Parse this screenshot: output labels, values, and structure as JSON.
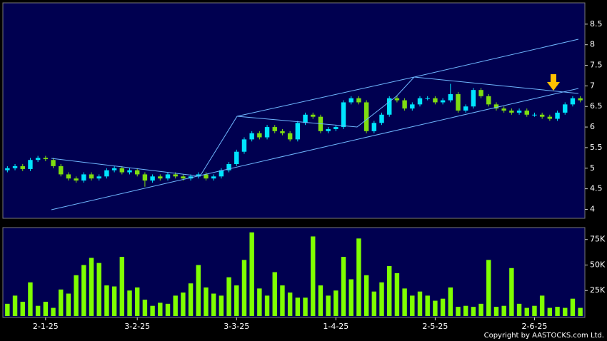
{
  "chart_data": [
    {
      "type": "candlestick",
      "up_color": "#00e5ff",
      "down_color": "#7fdd10",
      "xlim": [
        -0.5,
        75.5
      ],
      "ylim": [
        3.8,
        9.0
      ],
      "yticks": [
        4,
        4.5,
        5,
        5.5,
        6,
        6.5,
        7,
        7.5,
        8,
        8.5
      ],
      "open": [
        4.95,
        5.0,
        5.05,
        4.98,
        5.2,
        5.25,
        5.2,
        5.05,
        4.85,
        4.75,
        4.7,
        4.85,
        4.75,
        4.8,
        4.95,
        5.0,
        4.9,
        4.95,
        4.85,
        4.7,
        4.8,
        4.75,
        4.85,
        4.8,
        4.75,
        4.8,
        4.85,
        4.75,
        4.8,
        4.95,
        5.1,
        5.4,
        5.7,
        5.85,
        5.75,
        6.0,
        5.9,
        5.85,
        5.7,
        6.1,
        6.3,
        6.25,
        5.9,
        5.95,
        6.0,
        6.6,
        6.7,
        6.6,
        5.9,
        6.1,
        6.3,
        6.7,
        6.65,
        6.45,
        6.55,
        6.7,
        6.7,
        6.6,
        6.65,
        6.8,
        6.4,
        6.5,
        6.9,
        6.75,
        6.55,
        6.45,
        6.4,
        6.35,
        6.4,
        6.3,
        6.3,
        6.25,
        6.2,
        6.35,
        6.55,
        6.7
      ],
      "high": [
        5.05,
        5.1,
        5.1,
        5.25,
        5.3,
        5.3,
        5.25,
        5.1,
        4.9,
        4.8,
        4.9,
        4.9,
        4.85,
        5.0,
        5.05,
        5.05,
        5.0,
        5.0,
        4.9,
        4.85,
        4.85,
        4.9,
        4.9,
        4.85,
        4.85,
        4.9,
        4.9,
        4.85,
        5.0,
        5.15,
        5.45,
        5.75,
        5.9,
        5.9,
        6.05,
        6.05,
        5.95,
        5.9,
        6.15,
        6.35,
        6.35,
        6.3,
        6.0,
        6.05,
        6.65,
        6.75,
        6.75,
        6.65,
        6.15,
        6.35,
        6.75,
        6.75,
        6.7,
        6.6,
        6.75,
        6.75,
        6.75,
        6.7,
        7.05,
        6.85,
        6.55,
        6.95,
        6.95,
        6.8,
        6.6,
        6.5,
        6.45,
        6.45,
        6.45,
        6.35,
        6.35,
        6.3,
        6.4,
        6.6,
        6.75,
        6.75
      ],
      "low": [
        4.9,
        4.95,
        4.93,
        4.93,
        5.15,
        5.17,
        5.0,
        4.8,
        4.7,
        4.65,
        4.65,
        4.7,
        4.7,
        4.75,
        4.9,
        4.85,
        4.85,
        4.8,
        4.55,
        4.65,
        4.7,
        4.7,
        4.75,
        4.7,
        4.7,
        4.75,
        4.7,
        4.7,
        4.75,
        4.9,
        5.05,
        5.35,
        5.65,
        5.7,
        5.7,
        5.85,
        5.8,
        5.65,
        5.65,
        6.05,
        6.2,
        5.85,
        5.85,
        5.9,
        5.95,
        6.55,
        6.55,
        5.85,
        5.85,
        6.05,
        6.25,
        6.6,
        6.4,
        6.4,
        6.5,
        6.65,
        6.55,
        6.55,
        6.6,
        6.35,
        6.35,
        6.45,
        6.7,
        6.5,
        6.4,
        6.35,
        6.3,
        6.3,
        6.25,
        6.25,
        6.2,
        6.15,
        6.15,
        6.3,
        6.5,
        6.6
      ],
      "close": [
        5.0,
        5.05,
        4.98,
        5.2,
        5.25,
        5.22,
        5.05,
        4.85,
        4.75,
        4.7,
        4.85,
        4.75,
        4.8,
        4.95,
        5.0,
        4.9,
        4.95,
        4.85,
        4.7,
        4.8,
        4.75,
        4.85,
        4.8,
        4.75,
        4.8,
        4.85,
        4.75,
        4.8,
        4.95,
        5.1,
        5.4,
        5.7,
        5.85,
        5.75,
        6.0,
        5.9,
        5.85,
        5.7,
        6.1,
        6.3,
        6.25,
        5.9,
        5.95,
        6.0,
        6.6,
        6.7,
        6.6,
        5.9,
        6.1,
        6.3,
        6.7,
        6.65,
        6.45,
        6.55,
        6.7,
        6.7,
        6.6,
        6.65,
        6.8,
        6.4,
        6.5,
        6.9,
        6.75,
        6.55,
        6.45,
        6.4,
        6.35,
        6.4,
        6.3,
        6.3,
        6.25,
        6.2,
        6.35,
        6.55,
        6.7,
        6.65
      ]
    },
    {
      "type": "bar",
      "color": "#7fff00",
      "xlim": [
        -0.5,
        75.5
      ],
      "ylim": [
        0,
        86000
      ],
      "xticks": [
        {
          "value": 5,
          "label": "2-1-25"
        },
        {
          "value": 17,
          "label": "3-2-25"
        },
        {
          "value": 30,
          "label": "3-3-25"
        },
        {
          "value": 43,
          "label": "1-4-25"
        },
        {
          "value": 56,
          "label": "2-5-25"
        },
        {
          "value": 69,
          "label": "2-6-25"
        }
      ],
      "yticks": [
        {
          "value": 25000,
          "label": "25K"
        },
        {
          "value": 50000,
          "label": "50K"
        },
        {
          "value": 75000,
          "label": "75K"
        }
      ],
      "values": [
        12000,
        20000,
        14000,
        33000,
        10000,
        14000,
        8000,
        26000,
        22000,
        40000,
        50000,
        57000,
        52000,
        30000,
        29000,
        58000,
        25000,
        28000,
        16000,
        10000,
        13000,
        12000,
        20000,
        23000,
        32000,
        50000,
        28000,
        22000,
        20000,
        38000,
        30000,
        55000,
        82000,
        27000,
        20000,
        43000,
        30000,
        23000,
        18000,
        18000,
        78000,
        30000,
        20000,
        25000,
        58000,
        36000,
        76000,
        40000,
        24000,
        33000,
        49000,
        42000,
        27000,
        20000,
        24000,
        20000,
        15000,
        17000,
        28000,
        9000,
        10000,
        9000,
        12000,
        55000,
        9000,
        10000,
        47000,
        12000,
        8000,
        10000,
        20000,
        8000,
        9000,
        8000,
        17000,
        8000
      ]
    }
  ],
  "footer": "Copyright by AASTOCKS.com Ltd."
}
